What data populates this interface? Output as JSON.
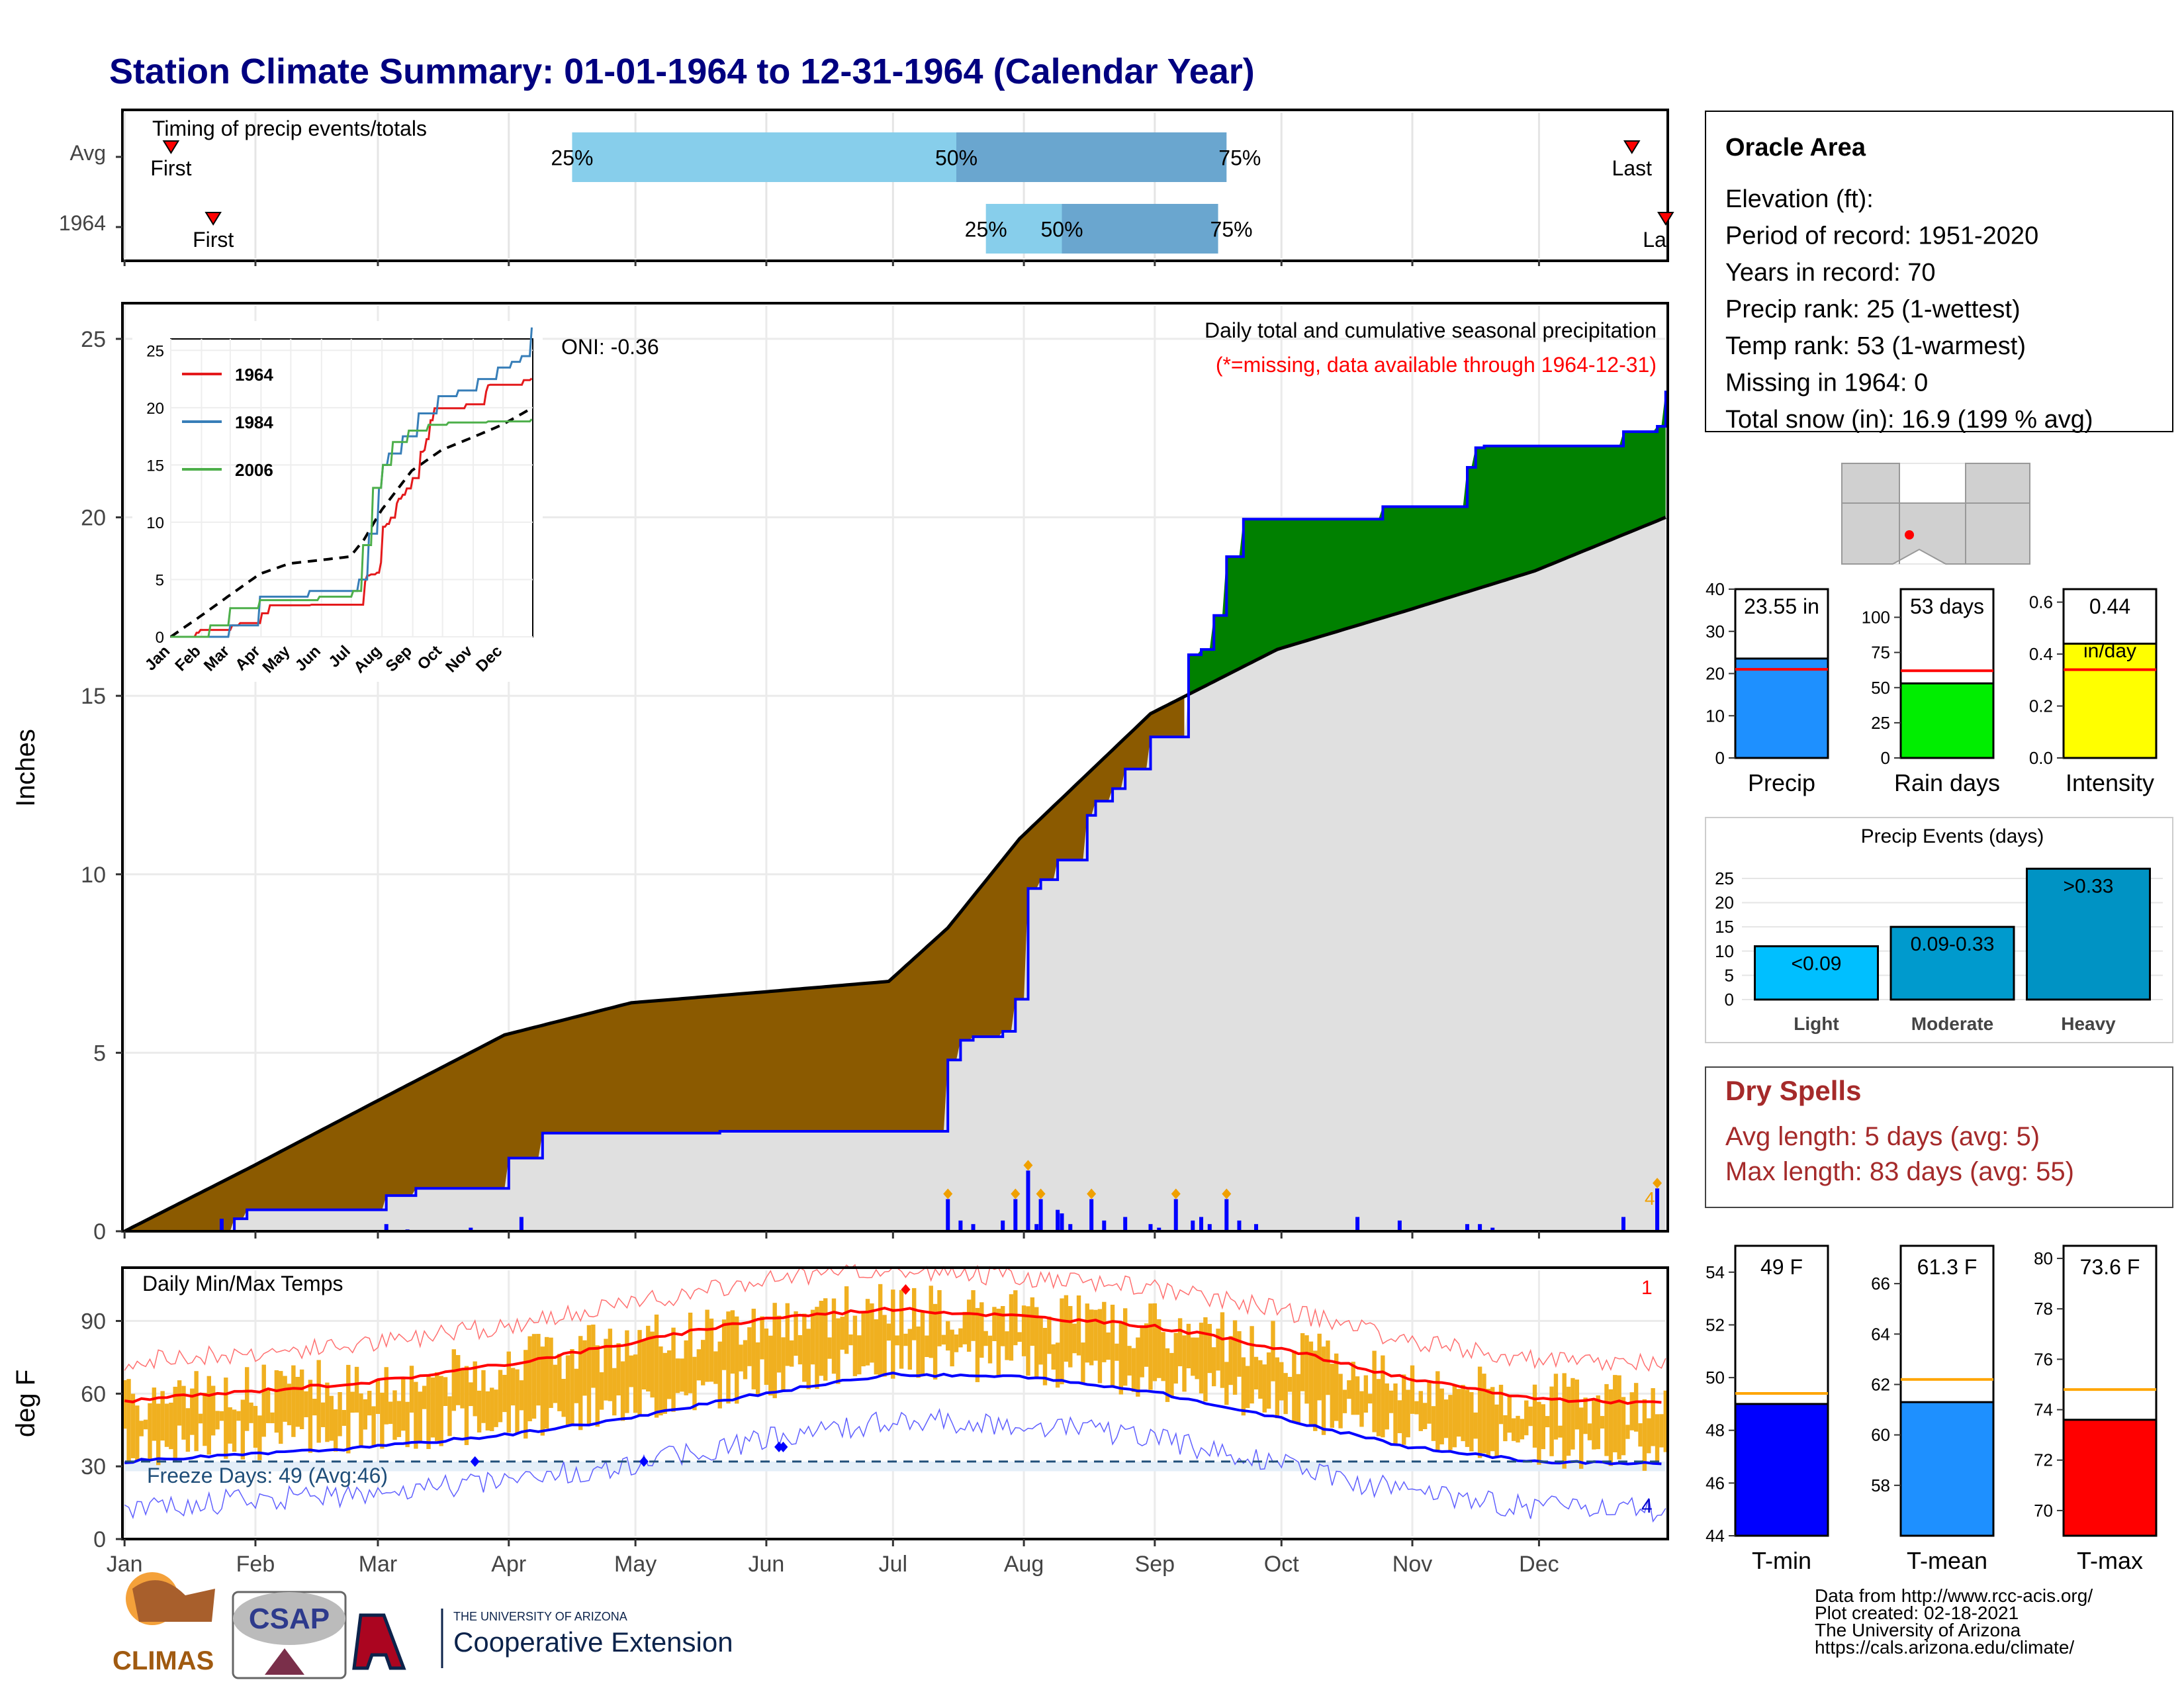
{
  "title": "Station Climate Summary: 01-01-1964 to 12-31-1964 (Calendar Year)",
  "colors": {
    "title": "#000080",
    "brown": "#8B5A00",
    "green": "#008000",
    "grey_fill": "#e0e0e0",
    "blue": "#0000ff",
    "red": "#ff0000",
    "gold": "#f0b020",
    "avg_bar_light": "#87CEEB",
    "avg_bar_dark": "#6aa6cf"
  },
  "timing": {
    "title": "Timing of precip events/totals",
    "rows": [
      {
        "label": "Avg",
        "first_label": "First",
        "last_label": "Last",
        "first_day": 12,
        "last_day": 358,
        "p25_day": 107,
        "p50_day": 198,
        "p75_day": 262,
        "p25_label": "25%",
        "p50_label": "50%",
        "p75_label": "75%"
      },
      {
        "label": "1964",
        "first_label": "First",
        "last_label": "La",
        "first_day": 22,
        "last_day": 366,
        "p25_day": 205,
        "p50_day": 223,
        "p75_day": 260,
        "p25_label": "25%",
        "p50_label": "50%",
        "p75_label": "75%"
      }
    ]
  },
  "precip": {
    "ylabel": "Inches",
    "ylim": [
      0,
      26
    ],
    "yticks": [
      0,
      5,
      10,
      15,
      20,
      25
    ],
    "oni": "ONI: -0.36",
    "note1": "Daily total and cumulative seasonal precipitation",
    "note2": "(*=missing, data available through 1964-12-31)",
    "corner_count": "4",
    "avg_cumulative_day": [
      1,
      31,
      60,
      91,
      121,
      152,
      182,
      196,
      213,
      244,
      274,
      305,
      335,
      366
    ],
    "avg_cumulative_val": [
      0,
      1.8,
      3.6,
      5.5,
      6.4,
      6.7,
      7.0,
      8.5,
      11.0,
      14.5,
      16.3,
      17.4,
      18.5,
      20.0
    ],
    "obs_cumulative_day": [
      1,
      24,
      27,
      30,
      63,
      70,
      92,
      100,
      140,
      142,
      185,
      196,
      199,
      202,
      209,
      212,
      215,
      218,
      222,
      229,
      231,
      235,
      238,
      244,
      253,
      256,
      259,
      262,
      266,
      275,
      299,
      319,
      321,
      323,
      356,
      364,
      366
    ],
    "obs_cumulative_val": [
      0,
      0,
      0.35,
      0.6,
      1.0,
      1.2,
      2.05,
      2.75,
      2.75,
      2.8,
      2.8,
      4.8,
      5.35,
      5.45,
      5.6,
      6.5,
      9.6,
      9.85,
      10.4,
      11.65,
      12.05,
      12.4,
      12.95,
      13.85,
      16.15,
      16.3,
      17.25,
      18.9,
      19.95,
      19.95,
      20.3,
      21.4,
      21.95,
      22.0,
      22.4,
      22.55,
      23.55
    ],
    "events_day": [
      24,
      63,
      68,
      83,
      95,
      196,
      199,
      202,
      209,
      212,
      215,
      217,
      218,
      222,
      223,
      225,
      230,
      233,
      238,
      244,
      246,
      250,
      254,
      256,
      258,
      262,
      265,
      269,
      293,
      303,
      319,
      322,
      325,
      356,
      364
    ],
    "events_val": [
      0.35,
      0.2,
      0.05,
      0.1,
      0.4,
      0.9,
      0.3,
      0.2,
      0.3,
      0.9,
      1.7,
      0.2,
      0.9,
      0.6,
      0.5,
      0.2,
      0.9,
      0.3,
      0.4,
      0.2,
      0.1,
      0.9,
      0.3,
      0.4,
      0.2,
      0.9,
      0.3,
      0.2,
      0.4,
      0.3,
      0.2,
      0.2,
      0.1,
      0.4,
      1.2
    ],
    "months": [
      "Jan",
      "Feb",
      "Mar",
      "Apr",
      "May",
      "Jun",
      "Jul",
      "Aug",
      "Sep",
      "Oct",
      "Nov",
      "Dec"
    ]
  },
  "inset": {
    "series": [
      {
        "name": "1964",
        "color": "#e41a1c"
      },
      {
        "name": "1984",
        "color": "#377eb8"
      },
      {
        "name": "2006",
        "color": "#4daf4a"
      }
    ],
    "yticks": [
      0,
      5,
      10,
      15,
      20,
      25
    ],
    "months": [
      "Jan",
      "Feb",
      "Mar",
      "Apr",
      "May",
      "Jun",
      "Jul",
      "Aug",
      "Sep",
      "Oct",
      "Nov",
      "Dec"
    ]
  },
  "info_box": {
    "station": "Oracle Area",
    "lines": [
      "Elevation (ft):",
      "Period of record: 1951-2020",
      "Years in record: 70",
      "Precip rank: 25 (1-wettest)",
      "Temp rank: 53 (1-warmest)",
      "Missing in 1964: 0",
      "Total snow (in): 16.9 (199 % avg)"
    ]
  },
  "summary_bars": [
    {
      "label": "Precip",
      "value": 23.55,
      "avg": 21,
      "display": "23.55 in",
      "ylim": [
        0,
        40
      ],
      "yticks": [
        0,
        10,
        20,
        30,
        40
      ],
      "color": "#1E90FF"
    },
    {
      "label": "Rain days",
      "value": 53,
      "avg": 62,
      "display": "53 days",
      "ylim": [
        0,
        120
      ],
      "yticks": [
        0,
        25,
        50,
        75,
        100
      ],
      "color": "#00ee00"
    },
    {
      "label": "Intensity",
      "value": 0.44,
      "avg": 0.34,
      "display": "0.44",
      "display2": "in/day",
      "ylim": [
        0,
        0.65
      ],
      "yticks": [
        "0.0",
        "0.2",
        "0.4",
        "0.6"
      ],
      "color": "#ffff00"
    }
  ],
  "events": {
    "title": "Precip Events (days)",
    "yticks": [
      0,
      5,
      10,
      15,
      20,
      25
    ],
    "bars": [
      {
        "category": "Light",
        "label": "<0.09",
        "value": 11,
        "color": "#00BFFF"
      },
      {
        "category": "Moderate",
        "label": "0.09-0.33",
        "value": 15,
        "color": "#009ACD"
      },
      {
        "category": "Heavy",
        "label": ">0.33",
        "value": 27,
        "color": "#0093C4"
      }
    ]
  },
  "dry_spells": {
    "title": "Dry Spells",
    "avg_line": "Avg length: 5 days (avg: 5)",
    "max_line": "Max length: 83 days (avg: 55)"
  },
  "temps": {
    "title": "Daily Min/Max Temps",
    "ylabel": "deg F",
    "yticks": [
      0,
      30,
      60,
      90
    ],
    "ylim": [
      0,
      112
    ],
    "freeze": "Freeze Days: 49 (Avg:46)",
    "red_count": "1",
    "blue_count": "4",
    "avg_max_day": [
      1,
      31,
      60,
      91,
      121,
      152,
      182,
      213,
      244,
      274,
      305,
      335,
      366
    ],
    "avg_max_val": [
      57,
      61,
      65,
      72,
      81,
      91,
      95,
      92,
      88,
      79,
      66,
      58,
      56
    ],
    "avg_min_day": [
      1,
      31,
      60,
      91,
      121,
      152,
      182,
      213,
      244,
      274,
      305,
      335,
      366
    ],
    "avg_min_val": [
      32,
      35,
      38,
      43,
      50,
      60,
      68,
      67,
      61,
      50,
      38,
      32,
      31
    ],
    "freeze_line": 32
  },
  "temp_bars": [
    {
      "label": "T-min",
      "display": "49 F",
      "value": 49,
      "avg": 49.4,
      "ylim": [
        44,
        55
      ],
      "yticks": [
        44,
        46,
        48,
        50,
        52,
        54
      ],
      "color": "#0000ff"
    },
    {
      "label": "T-mean",
      "display": "61.3 F",
      "value": 61.3,
      "avg": 62.2,
      "ylim": [
        56,
        67.5
      ],
      "yticks": [
        58,
        60,
        62,
        64,
        66
      ],
      "color": "#1E90FF"
    },
    {
      "label": "T-max",
      "display": "73.6 F",
      "value": 73.6,
      "avg": 74.8,
      "ylim": [
        69,
        80.5
      ],
      "yticks": [
        70,
        72,
        74,
        76,
        78,
        80
      ],
      "color": "#ff0000"
    }
  ],
  "footer": {
    "lines": [
      "Data from http://www.rcc-acis.org/",
      "Plot created: 02-18-2021",
      "The University of Arizona",
      "https://cals.arizona.edu/climate/"
    ],
    "climas": "CLIMAS",
    "csap": "CSAP",
    "ua_small": "THE UNIVERSITY OF ARIZONA",
    "ua_big": "Cooperative Extension"
  }
}
